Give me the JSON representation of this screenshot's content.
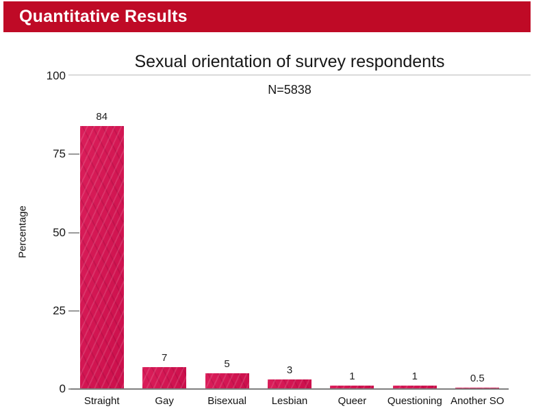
{
  "header": {
    "title": "Quantitative Results"
  },
  "colors": {
    "header_bg": "#bf0a26",
    "header_text": "#ffffff",
    "bar_fill": "#d81050",
    "axis_line": "#7e7e7e",
    "title_underline": "#b9b9b9",
    "text": "#161616"
  },
  "chart_data": {
    "type": "bar",
    "title": "Sexual orientation of survey respondents",
    "subtitle": "N=5838",
    "categories": [
      "Straight",
      "Gay",
      "Bisexual",
      "Lesbian",
      "Queer",
      "Questioning",
      "Another SO"
    ],
    "values": [
      84,
      7,
      5,
      3,
      1,
      1,
      0.5
    ],
    "value_labels": [
      "84",
      "7",
      "5",
      "3",
      "1",
      "1",
      "0.5"
    ],
    "xlabel": "",
    "ylabel": "Percentage",
    "ylim": [
      0,
      100
    ],
    "yticks": [
      0,
      25,
      50,
      75,
      100
    ],
    "grid": "horizontal hairline at 100 only; short tick marks at 0,25,50,75",
    "legend": "none"
  }
}
